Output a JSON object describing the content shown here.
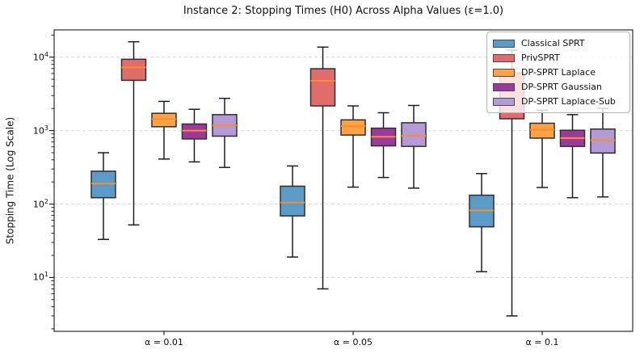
{
  "figure": {
    "background": "#ffffff"
  },
  "chart_data": {
    "type": "boxplot",
    "title": "Instance 2: Stopping Times (H0) Across Alpha Values (ε=1.0)",
    "xlabel": "",
    "ylabel": "Stopping Time (Log Scale)",
    "yscale": "log",
    "ylim": [
      1.85,
      23500
    ],
    "yticks": [
      10,
      100,
      1000,
      10000
    ],
    "grid": "horizontal-dashed",
    "legend_position": "upper-right",
    "categories": [
      "α = 0.01",
      "α = 0.05",
      "α = 0.1"
    ],
    "colors": {
      "median_line": "#ff8c26",
      "box_edge": "#2e2e2e",
      "whisker": "#1f1f1f",
      "gridline": "#d9d9d9",
      "spine": "#2b2b2b"
    },
    "series": [
      {
        "name": "Classical SPRT",
        "color": "#5b9bc8",
        "boxes": [
          {
            "whislo": 33,
            "q1": 122,
            "med": 190,
            "q3": 280,
            "whishi": 500
          },
          {
            "whislo": 19,
            "q1": 69,
            "med": 105,
            "q3": 175,
            "whishi": 330
          },
          {
            "whislo": 12,
            "q1": 49,
            "med": 82,
            "q3": 132,
            "whishi": 260
          }
        ]
      },
      {
        "name": "PrivSPRT",
        "color": "#e06c6c",
        "boxes": [
          {
            "whislo": 52,
            "q1": 4840,
            "med": 7260,
            "q3": 9360,
            "whishi": 16200
          },
          {
            "whislo": 7,
            "q1": 2170,
            "med": 4760,
            "q3": 6960,
            "whishi": 13700
          },
          {
            "whislo": 3,
            "q1": 1450,
            "med": 4900,
            "q3": 6100,
            "whishi": 12500
          }
        ]
      },
      {
        "name": "DP-SPRT Laplace",
        "color": "#ffa245",
        "boxes": [
          {
            "whislo": 410,
            "q1": 1130,
            "med": 1430,
            "q3": 1720,
            "whishi": 2500
          },
          {
            "whislo": 170,
            "q1": 870,
            "med": 1150,
            "q3": 1400,
            "whishi": 2170
          },
          {
            "whislo": 168,
            "q1": 790,
            "med": 1030,
            "q3": 1260,
            "whishi": 1900
          }
        ]
      },
      {
        "name": "DP-SPRT Gaussian",
        "color": "#9c3a9c",
        "boxes": [
          {
            "whislo": 375,
            "q1": 770,
            "med": 1000,
            "q3": 1230,
            "whishi": 1950
          },
          {
            "whislo": 230,
            "q1": 620,
            "med": 825,
            "q3": 1080,
            "whishi": 1750
          },
          {
            "whislo": 122,
            "q1": 610,
            "med": 790,
            "q3": 1010,
            "whishi": 1650
          }
        ]
      },
      {
        "name": "DP-SPRT Laplace-Sub",
        "color": "#b49bd8",
        "boxes": [
          {
            "whislo": 315,
            "q1": 840,
            "med": 1180,
            "q3": 1650,
            "whishi": 2750
          },
          {
            "whislo": 165,
            "q1": 610,
            "med": 850,
            "q3": 1280,
            "whishi": 2200
          },
          {
            "whislo": 125,
            "q1": 495,
            "med": 740,
            "q3": 1050,
            "whishi": 2000
          }
        ]
      }
    ]
  }
}
